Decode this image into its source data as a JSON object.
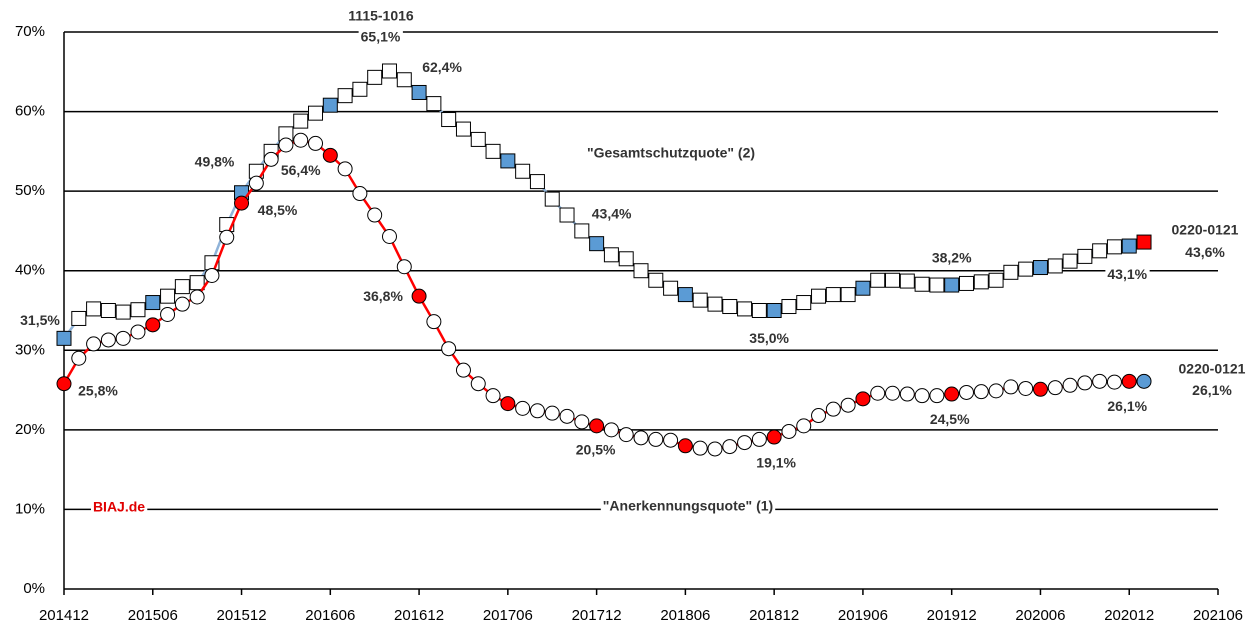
{
  "chart_data": {
    "type": "line",
    "x": [
      "201412",
      "201501",
      "201502",
      "201503",
      "201504",
      "201505",
      "201506",
      "201507",
      "201508",
      "201509",
      "201510",
      "201511",
      "201512",
      "201601",
      "201602",
      "201603",
      "201604",
      "201605",
      "201606",
      "201607",
      "201608",
      "201609",
      "201610",
      "201611",
      "201612",
      "201701",
      "201702",
      "201703",
      "201704",
      "201705",
      "201706",
      "201707",
      "201708",
      "201709",
      "201710",
      "201711",
      "201712",
      "201801",
      "201802",
      "201803",
      "201804",
      "201805",
      "201806",
      "201807",
      "201808",
      "201809",
      "201810",
      "201811",
      "201812",
      "201901",
      "201902",
      "201903",
      "201904",
      "201905",
      "201906",
      "201907",
      "201908",
      "201909",
      "201910",
      "201911",
      "201912",
      "202001",
      "202002",
      "202003",
      "202004",
      "202005",
      "202006",
      "202007",
      "202008",
      "202009",
      "202010",
      "202011",
      "202012",
      "202101"
    ],
    "xlim": [
      "201412",
      "202106"
    ],
    "xticks": [
      "201412",
      "201506",
      "201512",
      "201606",
      "201612",
      "201706",
      "201712",
      "201806",
      "201812",
      "201906",
      "201912",
      "202006",
      "202012",
      "202106"
    ],
    "ylim": [
      0,
      70
    ],
    "yticks": [
      {
        "value": 0,
        "label": "0%"
      },
      {
        "value": 10,
        "label": "10%"
      },
      {
        "value": 20,
        "label": "20%"
      },
      {
        "value": 30,
        "label": "30%"
      },
      {
        "value": 40,
        "label": "40%"
      },
      {
        "value": 50,
        "label": "50%"
      },
      {
        "value": 60,
        "label": "60%"
      },
      {
        "value": 70,
        "label": "70%"
      }
    ],
    "grid": true,
    "source": "BIAJ.de",
    "annotations": [
      "1115-1016",
      "0220-0121",
      "0220-0121"
    ],
    "series": [
      {
        "name": "\"Gesamtschutzquote\" (2)",
        "color": "#8fb3d9",
        "marker": "square",
        "values": [
          31.5,
          34.0,
          35.2,
          35.0,
          34.8,
          35.1,
          36.0,
          36.8,
          38.0,
          38.5,
          41.0,
          45.8,
          49.8,
          52.5,
          55.0,
          57.2,
          58.8,
          59.8,
          60.8,
          62.0,
          62.8,
          64.3,
          65.1,
          64.0,
          62.4,
          61.0,
          59.0,
          57.8,
          56.5,
          55.0,
          53.8,
          52.5,
          51.2,
          49.0,
          47.0,
          45.0,
          43.4,
          42.0,
          41.5,
          40.0,
          38.8,
          37.8,
          37.0,
          36.3,
          35.8,
          35.5,
          35.2,
          35.0,
          35.0,
          35.5,
          36.0,
          36.8,
          37.0,
          37.0,
          37.8,
          38.8,
          38.8,
          38.7,
          38.3,
          38.2,
          38.2,
          38.4,
          38.6,
          38.8,
          39.8,
          40.2,
          40.4,
          40.6,
          41.2,
          41.8,
          42.5,
          43.0,
          43.1,
          43.6
        ],
        "value_labels": [
          "31,5%",
          null,
          null,
          null,
          null,
          null,
          null,
          null,
          null,
          null,
          null,
          null,
          "49,8%",
          null,
          null,
          null,
          null,
          null,
          null,
          null,
          null,
          null,
          "65,1%",
          null,
          "62,4%",
          null,
          null,
          null,
          null,
          null,
          null,
          null,
          null,
          null,
          null,
          null,
          "43,4%",
          null,
          null,
          null,
          null,
          null,
          null,
          null,
          null,
          null,
          null,
          null,
          "35,0%",
          null,
          null,
          null,
          null,
          null,
          null,
          null,
          null,
          null,
          null,
          null,
          "38,2%",
          null,
          null,
          null,
          null,
          null,
          null,
          null,
          null,
          null,
          null,
          null,
          "43,1%",
          "43,6%"
        ],
        "marker_colors": [
          "#5b9bd5",
          "#ffffff",
          "#ffffff",
          "#ffffff",
          "#ffffff",
          "#ffffff",
          "#5b9bd5",
          "#ffffff",
          "#ffffff",
          "#ffffff",
          "#ffffff",
          "#ffffff",
          "#5b9bd5",
          "#ffffff",
          "#ffffff",
          "#ffffff",
          "#ffffff",
          "#ffffff",
          "#5b9bd5",
          "#ffffff",
          "#ffffff",
          "#ffffff",
          "#ffffff",
          "#ffffff",
          "#5b9bd5",
          "#ffffff",
          "#ffffff",
          "#ffffff",
          "#ffffff",
          "#ffffff",
          "#5b9bd5",
          "#ffffff",
          "#ffffff",
          "#ffffff",
          "#ffffff",
          "#ffffff",
          "#5b9bd5",
          "#ffffff",
          "#ffffff",
          "#ffffff",
          "#ffffff",
          "#ffffff",
          "#5b9bd5",
          "#ffffff",
          "#ffffff",
          "#ffffff",
          "#ffffff",
          "#ffffff",
          "#5b9bd5",
          "#ffffff",
          "#ffffff",
          "#ffffff",
          "#ffffff",
          "#ffffff",
          "#5b9bd5",
          "#ffffff",
          "#ffffff",
          "#ffffff",
          "#ffffff",
          "#ffffff",
          "#5b9bd5",
          "#ffffff",
          "#ffffff",
          "#ffffff",
          "#ffffff",
          "#ffffff",
          "#5b9bd5",
          "#ffffff",
          "#ffffff",
          "#ffffff",
          "#ffffff",
          "#ffffff",
          "#5b9bd5",
          "#ff0000"
        ]
      },
      {
        "name": "\"Anerkennungsquote\" (1)",
        "color": "#ff0000",
        "marker": "circle",
        "values": [
          25.8,
          29.0,
          30.8,
          31.3,
          31.5,
          32.3,
          33.2,
          34.5,
          35.8,
          36.7,
          39.4,
          44.2,
          48.5,
          51.0,
          54.0,
          55.8,
          56.4,
          56.0,
          54.5,
          52.8,
          49.7,
          47.0,
          44.3,
          40.5,
          36.8,
          33.6,
          30.2,
          27.5,
          25.8,
          24.3,
          23.3,
          22.7,
          22.4,
          22.1,
          21.7,
          21.0,
          20.5,
          20.0,
          19.4,
          19.0,
          18.8,
          18.7,
          18.0,
          17.7,
          17.6,
          17.9,
          18.4,
          18.8,
          19.1,
          19.8,
          20.5,
          21.8,
          22.6,
          23.1,
          23.9,
          24.6,
          24.6,
          24.5,
          24.3,
          24.3,
          24.5,
          24.7,
          24.8,
          24.9,
          25.4,
          25.2,
          25.1,
          25.3,
          25.6,
          25.9,
          26.1,
          26.0,
          26.1,
          26.1
        ],
        "value_labels": [
          "25,8%",
          null,
          null,
          null,
          null,
          null,
          null,
          null,
          null,
          null,
          null,
          null,
          "48,5%",
          null,
          null,
          null,
          "56,4%",
          null,
          null,
          null,
          null,
          null,
          null,
          null,
          "36,8%",
          null,
          null,
          null,
          null,
          null,
          null,
          null,
          null,
          null,
          null,
          null,
          "20,5%",
          null,
          null,
          null,
          null,
          null,
          null,
          null,
          null,
          null,
          null,
          null,
          "19,1%",
          null,
          null,
          null,
          null,
          null,
          null,
          null,
          null,
          null,
          null,
          null,
          "24,5%",
          null,
          null,
          null,
          null,
          null,
          null,
          null,
          null,
          null,
          null,
          null,
          "26,1%",
          "26,1%"
        ],
        "marker_colors": [
          "#ff0000",
          "#ffffff",
          "#ffffff",
          "#ffffff",
          "#ffffff",
          "#ffffff",
          "#ff0000",
          "#ffffff",
          "#ffffff",
          "#ffffff",
          "#ffffff",
          "#ffffff",
          "#ff0000",
          "#ffffff",
          "#ffffff",
          "#ffffff",
          "#ffffff",
          "#ffffff",
          "#ff0000",
          "#ffffff",
          "#ffffff",
          "#ffffff",
          "#ffffff",
          "#ffffff",
          "#ff0000",
          "#ffffff",
          "#ffffff",
          "#ffffff",
          "#ffffff",
          "#ffffff",
          "#ff0000",
          "#ffffff",
          "#ffffff",
          "#ffffff",
          "#ffffff",
          "#ffffff",
          "#ff0000",
          "#ffffff",
          "#ffffff",
          "#ffffff",
          "#ffffff",
          "#ffffff",
          "#ff0000",
          "#ffffff",
          "#ffffff",
          "#ffffff",
          "#ffffff",
          "#ffffff",
          "#ff0000",
          "#ffffff",
          "#ffffff",
          "#ffffff",
          "#ffffff",
          "#ffffff",
          "#ff0000",
          "#ffffff",
          "#ffffff",
          "#ffffff",
          "#ffffff",
          "#ffffff",
          "#ff0000",
          "#ffffff",
          "#ffffff",
          "#ffffff",
          "#ffffff",
          "#ffffff",
          "#ff0000",
          "#ffffff",
          "#ffffff",
          "#ffffff",
          "#ffffff",
          "#ffffff",
          "#ff0000",
          "#5b9bd5"
        ]
      }
    ]
  }
}
